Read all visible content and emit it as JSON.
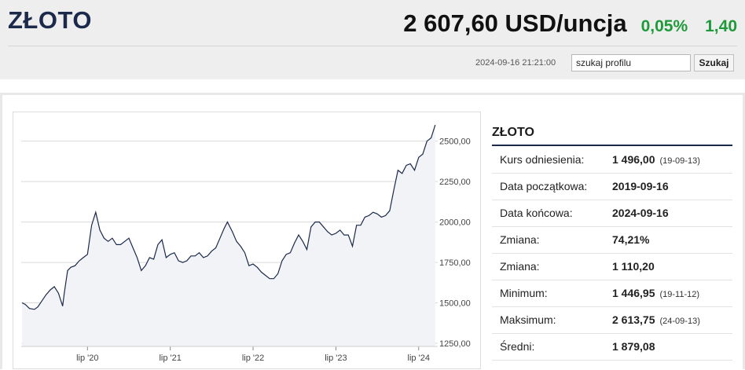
{
  "header": {
    "title": "ZŁOTO",
    "price": "2 607,60 USD/uncja",
    "change_pct": "0,05%",
    "change_abs": "1,40",
    "timestamp": "2024-09-16 21:21:00",
    "search_value": "szukaj profilu",
    "search_button": "Szukaj",
    "positive_color": "#1e9a3a"
  },
  "info": {
    "title": "ZŁOTO",
    "rows": [
      {
        "label": "Kurs odniesienia:",
        "value": "1 496,00",
        "note": "(19-09-13)"
      },
      {
        "label": "Data początkowa:",
        "value": "2019-09-16",
        "note": ""
      },
      {
        "label": "Data końcowa:",
        "value": "2024-09-16",
        "note": ""
      },
      {
        "label": "Zmiana:",
        "value": "74,21%",
        "note": ""
      },
      {
        "label": "Zmiana:",
        "value": "1 110,20",
        "note": ""
      },
      {
        "label": "Minimum:",
        "value": "1 446,95",
        "note": "(19-11-12)"
      },
      {
        "label": "Maksimum:",
        "value": "2 613,75",
        "note": "(24-09-13)"
      },
      {
        "label": "Średni:",
        "value": "1 879,08",
        "note": ""
      }
    ]
  },
  "chart_data": {
    "type": "area",
    "title": "",
    "xlabel": "",
    "ylabel": "",
    "ylim": [
      1250,
      2600
    ],
    "yticks": [
      "1250,00",
      "1500,00",
      "1750,00",
      "2000,00",
      "2250,00",
      "2500,00"
    ],
    "xticks": [
      "lip '20",
      "lip '21",
      "lip '22",
      "lip '23",
      "lip '24"
    ],
    "grid": true,
    "line_color": "#1b2a4a",
    "fill_color": "#f1f3f7",
    "series": [
      {
        "x": [
          2019.71,
          2019.75,
          2019.8,
          2019.86,
          2019.9,
          2019.96,
          2020.0,
          2020.05,
          2020.1,
          2020.15,
          2020.2,
          2020.22,
          2020.26,
          2020.3,
          2020.35,
          2020.4,
          2020.45,
          2020.5,
          2020.55,
          2020.6,
          2020.65,
          2020.7,
          2020.75,
          2020.8,
          2020.85,
          2020.9,
          2020.95,
          2021.0,
          2021.05,
          2021.1,
          2021.15,
          2021.2,
          2021.25,
          2021.3,
          2021.35,
          2021.4,
          2021.45,
          2021.5,
          2021.55,
          2021.6,
          2021.65,
          2021.7,
          2021.75,
          2021.8,
          2021.85,
          2021.9,
          2021.95,
          2022.0,
          2022.05,
          2022.1,
          2022.15,
          2022.19,
          2022.25,
          2022.3,
          2022.35,
          2022.4,
          2022.45,
          2022.5,
          2022.55,
          2022.6,
          2022.65,
          2022.7,
          2022.75,
          2022.8,
          2022.85,
          2022.9,
          2022.95,
          2023.0,
          2023.05,
          2023.1,
          2023.15,
          2023.2,
          2023.25,
          2023.3,
          2023.35,
          2023.4,
          2023.45,
          2023.5,
          2023.55,
          2023.6,
          2023.65,
          2023.7,
          2023.75,
          2023.8,
          2023.85,
          2023.9,
          2023.95,
          2024.0,
          2024.05,
          2024.1,
          2024.15,
          2024.2,
          2024.25,
          2024.3,
          2024.35,
          2024.4,
          2024.45,
          2024.5,
          2024.55,
          2024.6,
          2024.65,
          2024.7
        ],
        "y": [
          1500,
          1490,
          1465,
          1460,
          1475,
          1520,
          1550,
          1580,
          1600,
          1560,
          1480,
          1560,
          1700,
          1720,
          1730,
          1760,
          1780,
          1800,
          1980,
          2060,
          1950,
          1900,
          1880,
          1900,
          1860,
          1860,
          1880,
          1900,
          1840,
          1780,
          1700,
          1730,
          1780,
          1770,
          1860,
          1890,
          1780,
          1800,
          1810,
          1760,
          1750,
          1760,
          1790,
          1790,
          1810,
          1780,
          1790,
          1820,
          1840,
          1900,
          1960,
          2000,
          1940,
          1880,
          1850,
          1810,
          1730,
          1740,
          1720,
          1690,
          1670,
          1650,
          1650,
          1680,
          1760,
          1800,
          1810,
          1870,
          1920,
          1880,
          1830,
          1970,
          2000,
          2000,
          1970,
          1940,
          1920,
          1930,
          1950,
          1920,
          1920,
          1850,
          1980,
          1980,
          2030,
          2040,
          2060,
          2050,
          2030,
          2040,
          2070,
          2200,
          2320,
          2300,
          2350,
          2360,
          2320,
          2400,
          2420,
          2500,
          2520,
          2600
        ]
      }
    ]
  }
}
